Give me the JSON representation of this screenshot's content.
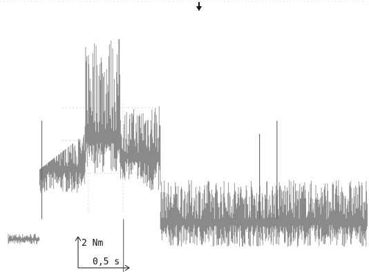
{
  "colors": {
    "background": "#ffffff",
    "trace": "#8a8a8a",
    "trace_spike": "#6a6a6a",
    "grid": "#d8d8d8",
    "marker": "#111111"
  },
  "icons": {
    "trigger_marker": "down-arrow-icon"
  },
  "scale": {
    "vertical_label": "2 Nm",
    "horizontal_label": "0,5 s"
  },
  "chart_data": {
    "type": "line",
    "title": "",
    "xlabel": "",
    "ylabel": "",
    "grid": true,
    "x_unit": "s",
    "y_unit": "Nm",
    "segments": [
      {
        "t": [
          0.0,
          0.45
        ],
        "mean": 0.0,
        "band": [
          -0.4,
          0.4
        ]
      },
      {
        "t": [
          0.45,
          1.1
        ],
        "mean": 5.5,
        "band": [
          3.5,
          8.0
        ]
      },
      {
        "t": [
          1.1,
          1.6
        ],
        "mean": 8.0,
        "band": [
          5.0,
          15.5
        ]
      },
      {
        "t": [
          1.6,
          1.9
        ],
        "mean": 6.5,
        "band": [
          4.5,
          10.0
        ]
      },
      {
        "t": [
          1.9,
          2.18
        ],
        "mean": 6.5,
        "band": [
          3.5,
          10.5
        ]
      },
      {
        "t": [
          2.18,
          5.15
        ],
        "mean": 1.5,
        "band": [
          -0.6,
          4.5
        ]
      }
    ],
    "spikes": [
      {
        "t": 0.48,
        "value": 9.0
      },
      {
        "t": 1.65,
        "value": -3.5
      },
      {
        "t": 3.6,
        "value": 8.0
      },
      {
        "t": 3.85,
        "value": 9.0
      }
    ],
    "scale_bar": {
      "y_value": 2,
      "y_unit": "Nm",
      "x_value": 0.5,
      "x_unit": "s"
    }
  }
}
